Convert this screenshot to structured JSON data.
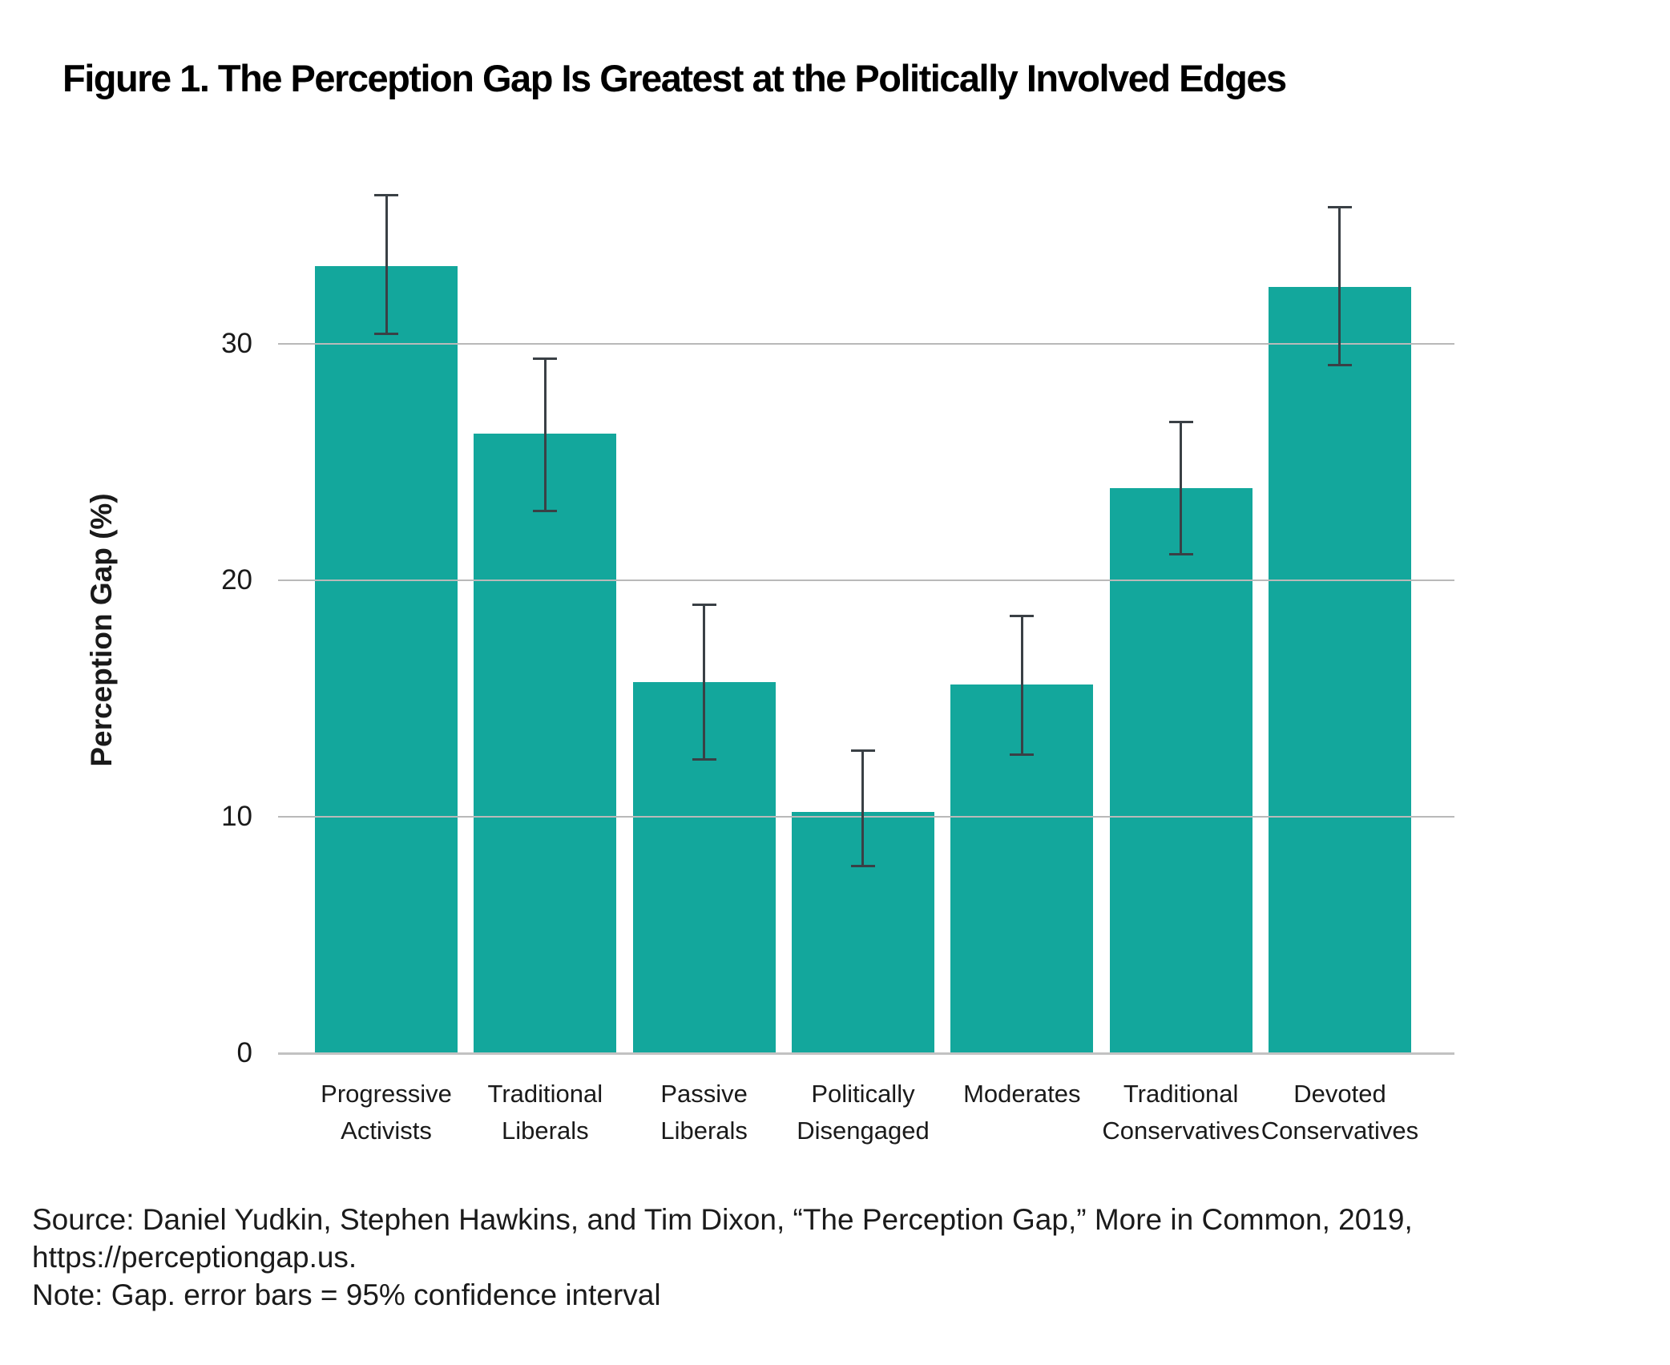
{
  "figure": {
    "title": "Figure 1. The Perception Gap Is Greatest at the Politically Involved Edges",
    "source": "Source: Daniel Yudkin, Stephen Hawkins, and Tim Dixon, “The Perception Gap,” More in Common, 2019, https://perceptiongap.us.",
    "note": "Note: Gap. error bars = 95% confidence interval"
  },
  "chart_data": {
    "type": "bar",
    "title": "Figure 1. The Perception Gap Is Greatest at the Politically Involved Edges",
    "xlabel": "",
    "ylabel": "Perception Gap (%)",
    "ylim": [
      0,
      38
    ],
    "yticks": [
      0,
      10,
      20,
      30
    ],
    "grid": true,
    "legend": false,
    "error_bars_meaning": "95% confidence interval",
    "bar_color": "#13a79c",
    "error_bar_color": "#3a4045",
    "grid_color": "#b9b9b9",
    "axis_line_color": "#c2c2c2",
    "categories": [
      "Progressive Activists",
      "Traditional Liberals",
      "Passive Liberals",
      "Politically Disengaged",
      "Moderates",
      "Traditional Conservatives",
      "Devoted Conservatives"
    ],
    "category_lines": [
      [
        "Progressive",
        "Activists"
      ],
      [
        "Traditional",
        "Liberals"
      ],
      [
        "Passive",
        "Liberals"
      ],
      [
        "Politically",
        "Disengaged"
      ],
      [
        "Moderates"
      ],
      [
        "Traditional",
        "Conservatives"
      ],
      [
        "Devoted",
        "Conservatives"
      ]
    ],
    "values": [
      33.3,
      26.2,
      15.7,
      10.2,
      15.6,
      23.9,
      32.4
    ],
    "ci_low": [
      30.4,
      22.9,
      12.4,
      7.9,
      12.6,
      21.1,
      29.1
    ],
    "ci_high": [
      36.3,
      29.4,
      19.0,
      12.8,
      18.5,
      26.7,
      35.8
    ]
  }
}
